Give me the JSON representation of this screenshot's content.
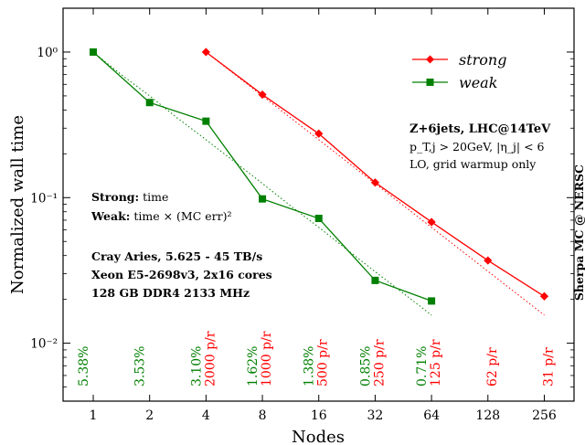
{
  "chart_data": {
    "type": "line",
    "xlabel": "Nodes",
    "ylabel": "Normalized wall time",
    "xscale": "log2",
    "yscale": "log10",
    "xlim": [
      0.69,
      369
    ],
    "ylim": [
      0.004,
      2.0
    ],
    "x_ticks": [
      1,
      2,
      4,
      8,
      16,
      32,
      64,
      128,
      256
    ],
    "x_tick_labels": [
      "1",
      "2",
      "4",
      "8",
      "16",
      "32",
      "64",
      "128",
      "256"
    ],
    "y_ticks": [
      0.01,
      0.1,
      1
    ],
    "y_tick_labels": [
      "10⁻²",
      "10⁻¹",
      "10⁰"
    ],
    "colors": {
      "strong": "#ff0000",
      "weak": "#008000",
      "axes": "#000000"
    },
    "series": [
      {
        "name": "strong",
        "marker": "diamond",
        "color": "#ff0000",
        "x": [
          4,
          8,
          16,
          32,
          64,
          128,
          256
        ],
        "y": [
          1.0,
          0.51,
          0.275,
          0.127,
          0.068,
          0.037,
          0.021
        ],
        "annotations": [
          "2000 p/r",
          "1000 p/r",
          "500 p/r",
          "250 p/r",
          "125 p/r",
          "62 p/r",
          "31 p/r"
        ]
      },
      {
        "name": "weak",
        "marker": "square",
        "color": "#008000",
        "x": [
          1,
          2,
          4,
          8,
          16,
          32,
          64
        ],
        "y": [
          1.0,
          0.45,
          0.335,
          0.098,
          0.072,
          0.027,
          0.0195
        ],
        "annotations": [
          "5.38%",
          "3.53%",
          "3.10%",
          "1.62%",
          "1.38%",
          "0.85%",
          "0.71%"
        ]
      }
    ],
    "reference_lines": [
      {
        "series": "strong",
        "color": "#ff0000",
        "style": "dotted",
        "x": [
          4,
          256
        ],
        "y": [
          1.0,
          0.0156
        ]
      },
      {
        "series": "weak",
        "color": "#008000",
        "style": "dotted",
        "x": [
          1,
          1.41,
          2,
          2.83,
          4,
          5.66,
          8,
          11.3,
          16,
          22.6,
          32,
          45.3,
          64
        ],
        "y": [
          1.0,
          0.7,
          0.5,
          0.35,
          0.25,
          0.177,
          0.125,
          0.088,
          0.0625,
          0.044,
          0.031,
          0.022,
          0.0156
        ]
      }
    ],
    "legend": {
      "position": "top-right",
      "entries": [
        "strong",
        "weak"
      ]
    },
    "grid": false,
    "text_blocks": {
      "process_title": "Z+6jets, LHC@14TeV",
      "cut_line": "p_T,j > 20GeV, |η_j| < 6",
      "run_mode": "LO,  grid warmup only",
      "strong_key": "Strong:",
      "strong_desc": " time",
      "weak_key": "Weak:",
      "weak_desc": " time × (MC err)²",
      "hardware_1": "Cray Aries, 5.625 - 45 TB/s",
      "hardware_2": "Xeon E5-2698v3, 2x16 cores",
      "hardware_3": "128 GB DDR4 2133 MHz",
      "side_label": "Sherpa MC @ NERSC"
    }
  }
}
